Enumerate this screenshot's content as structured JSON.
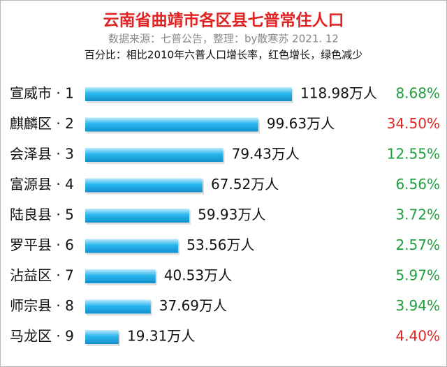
{
  "chart_data": {
    "type": "bar",
    "orientation": "horizontal",
    "title": "云南省曲靖市各区县七普常住人口",
    "subtitle": "数据来源：七普公告，整理：by散寒苏  2021. 12",
    "note": "百分比：相比2010年六普人口增长率，红色增长，绿色减少",
    "categories": [
      "宣威市 · 1",
      "麒麟区 · 2",
      "会泽县 · 3",
      "富源县 · 4",
      "陆良县 · 5",
      "罗平县 · 6",
      "沾益区 · 7",
      "师宗县 · 8",
      "马龙区 · 9"
    ],
    "values": [
      118.98,
      99.63,
      79.43,
      67.52,
      59.93,
      53.56,
      40.53,
      37.69,
      19.31
    ],
    "value_labels": [
      "118.98万人",
      "99.63万人",
      "79.43万人",
      "67.52万人",
      "59.93万人",
      "53.56万人",
      "40.53万人",
      "37.69万人",
      "19.31万人"
    ],
    "color": "#29b6ee",
    "growth": {
      "values": [
        8.68,
        34.5,
        12.55,
        6.56,
        3.72,
        2.57,
        5.97,
        3.94,
        4.4
      ],
      "value_labels": [
        "8.68%",
        "34.50%",
        "12.55%",
        "6.56%",
        "3.72%",
        "2.57%",
        "5.97%",
        "3.94%",
        "4.40%"
      ],
      "colors": [
        "#1e9e3c",
        "#e02424",
        "#1e9e3c",
        "#1e9e3c",
        "#1e9e3c",
        "#1e9e3c",
        "#1e9e3c",
        "#1e9e3c",
        "#e02424"
      ]
    }
  }
}
